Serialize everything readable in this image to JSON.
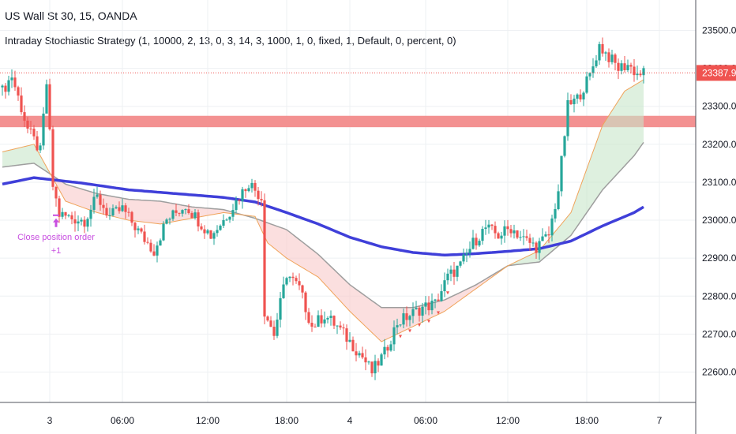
{
  "header": {
    "title": "US Wall St 30, 15, OANDA",
    "strategy": "Intraday Stochiastic Strategy (1, 10000, 2, 13, 0, 3, 14, 3, 1000, 1, 0, fixed, 1, Default, 0, percent, 0)"
  },
  "colors": {
    "up": "#26a69a",
    "down": "#ef5350",
    "sma_long": "#3f3fd9",
    "ma_slow": "#9e9e9e",
    "ma_fast": "#f0a35a",
    "fill_bull": "#c8e6c9",
    "fill_bear": "#f8c9c9",
    "resistance": "#f28b8b",
    "annotation": "#c84fe0"
  },
  "chart_data": {
    "type": "candlestick",
    "symbol": "US Wall St 30",
    "interval": "15",
    "source": "OANDA",
    "ylim": [
      22520,
      23580
    ],
    "y_ticks": [
      "23500.0",
      "23400.0",
      "23300.0",
      "23200.0",
      "23100.0",
      "23000.0",
      "22900.0",
      "22800.0",
      "22700.0",
      "22600.0"
    ],
    "x_ticks": [
      "3",
      "06:00",
      "12:00",
      "18:00",
      "4",
      "06:00",
      "12:00",
      "18:00",
      "7"
    ],
    "last_price": "23387.9",
    "resistance_zone": [
      23245,
      23275
    ],
    "bar_count": 204,
    "close_path": [
      [
        0,
        23340
      ],
      [
        3,
        23380
      ],
      [
        8,
        23240
      ],
      [
        12,
        23180
      ],
      [
        14,
        23360
      ],
      [
        16,
        23090
      ],
      [
        18,
        23015
      ],
      [
        22,
        23005
      ],
      [
        26,
        23000
      ],
      [
        30,
        23060
      ],
      [
        34,
        23010
      ],
      [
        38,
        23030
      ],
      [
        44,
        22960
      ],
      [
        48,
        22920
      ],
      [
        52,
        23000
      ],
      [
        55,
        23020
      ],
      [
        58,
        23040
      ],
      [
        62,
        23000
      ],
      [
        66,
        22960
      ],
      [
        70,
        23000
      ],
      [
        74,
        23050
      ],
      [
        78,
        23100
      ],
      [
        80,
        23080
      ],
      [
        82,
        23060
      ],
      [
        83,
        22760
      ],
      [
        86,
        22700
      ],
      [
        90,
        22860
      ],
      [
        94,
        22820
      ],
      [
        98,
        22720
      ],
      [
        102,
        22750
      ],
      [
        106,
        22720
      ],
      [
        110,
        22680
      ],
      [
        114,
        22640
      ],
      [
        117,
        22600
      ],
      [
        121,
        22650
      ],
      [
        125,
        22730
      ],
      [
        129,
        22750
      ],
      [
        133,
        22770
      ],
      [
        137,
        22780
      ],
      [
        141,
        22850
      ],
      [
        145,
        22880
      ],
      [
        149,
        22940
      ],
      [
        153,
        22980
      ],
      [
        157,
        22960
      ],
      [
        161,
        22980
      ],
      [
        165,
        22950
      ],
      [
        169,
        22930
      ],
      [
        173,
        22960
      ],
      [
        176,
        23080
      ],
      [
        179,
        23300
      ],
      [
        182,
        23320
      ],
      [
        186,
        23380
      ],
      [
        189,
        23460
      ],
      [
        192,
        23430
      ],
      [
        195,
        23400
      ],
      [
        198,
        23410
      ],
      [
        201,
        23385
      ],
      [
        203,
        23388
      ]
    ],
    "sma_long_path": [
      [
        0,
        23095
      ],
      [
        10,
        23112
      ],
      [
        25,
        23098
      ],
      [
        40,
        23080
      ],
      [
        55,
        23070
      ],
      [
        70,
        23060
      ],
      [
        80,
        23048
      ],
      [
        90,
        23020
      ],
      [
        100,
        22990
      ],
      [
        110,
        22955
      ],
      [
        120,
        22930
      ],
      [
        130,
        22915
      ],
      [
        140,
        22908
      ],
      [
        150,
        22912
      ],
      [
        160,
        22918
      ],
      [
        170,
        22925
      ],
      [
        180,
        22945
      ],
      [
        190,
        22985
      ],
      [
        200,
        23020
      ],
      [
        203,
        23035
      ]
    ],
    "ma_slow_path": [
      [
        0,
        23140
      ],
      [
        10,
        23150
      ],
      [
        20,
        23095
      ],
      [
        30,
        23070
      ],
      [
        40,
        23055
      ],
      [
        50,
        23050
      ],
      [
        60,
        23035
      ],
      [
        70,
        23028
      ],
      [
        80,
        23005
      ],
      [
        90,
        22975
      ],
      [
        100,
        22910
      ],
      [
        110,
        22830
      ],
      [
        120,
        22770
      ],
      [
        130,
        22770
      ],
      [
        140,
        22790
      ],
      [
        150,
        22830
      ],
      [
        160,
        22880
      ],
      [
        170,
        22890
      ],
      [
        180,
        22960
      ],
      [
        190,
        23080
      ],
      [
        200,
        23170
      ],
      [
        203,
        23205
      ]
    ],
    "ma_fast_path": [
      [
        0,
        23180
      ],
      [
        10,
        23200
      ],
      [
        20,
        23050
      ],
      [
        30,
        23020
      ],
      [
        40,
        23000
      ],
      [
        50,
        22990
      ],
      [
        60,
        23005
      ],
      [
        70,
        23020
      ],
      [
        80,
        23010
      ],
      [
        84,
        22940
      ],
      [
        90,
        22900
      ],
      [
        100,
        22850
      ],
      [
        110,
        22760
      ],
      [
        120,
        22680
      ],
      [
        130,
        22720
      ],
      [
        140,
        22760
      ],
      [
        150,
        22820
      ],
      [
        160,
        22880
      ],
      [
        170,
        22920
      ],
      [
        180,
        23020
      ],
      [
        190,
        23250
      ],
      [
        197,
        23340
      ],
      [
        203,
        23370
      ]
    ],
    "annotation": {
      "label": "Close position order",
      "value": "+1",
      "bar": 17
    }
  }
}
